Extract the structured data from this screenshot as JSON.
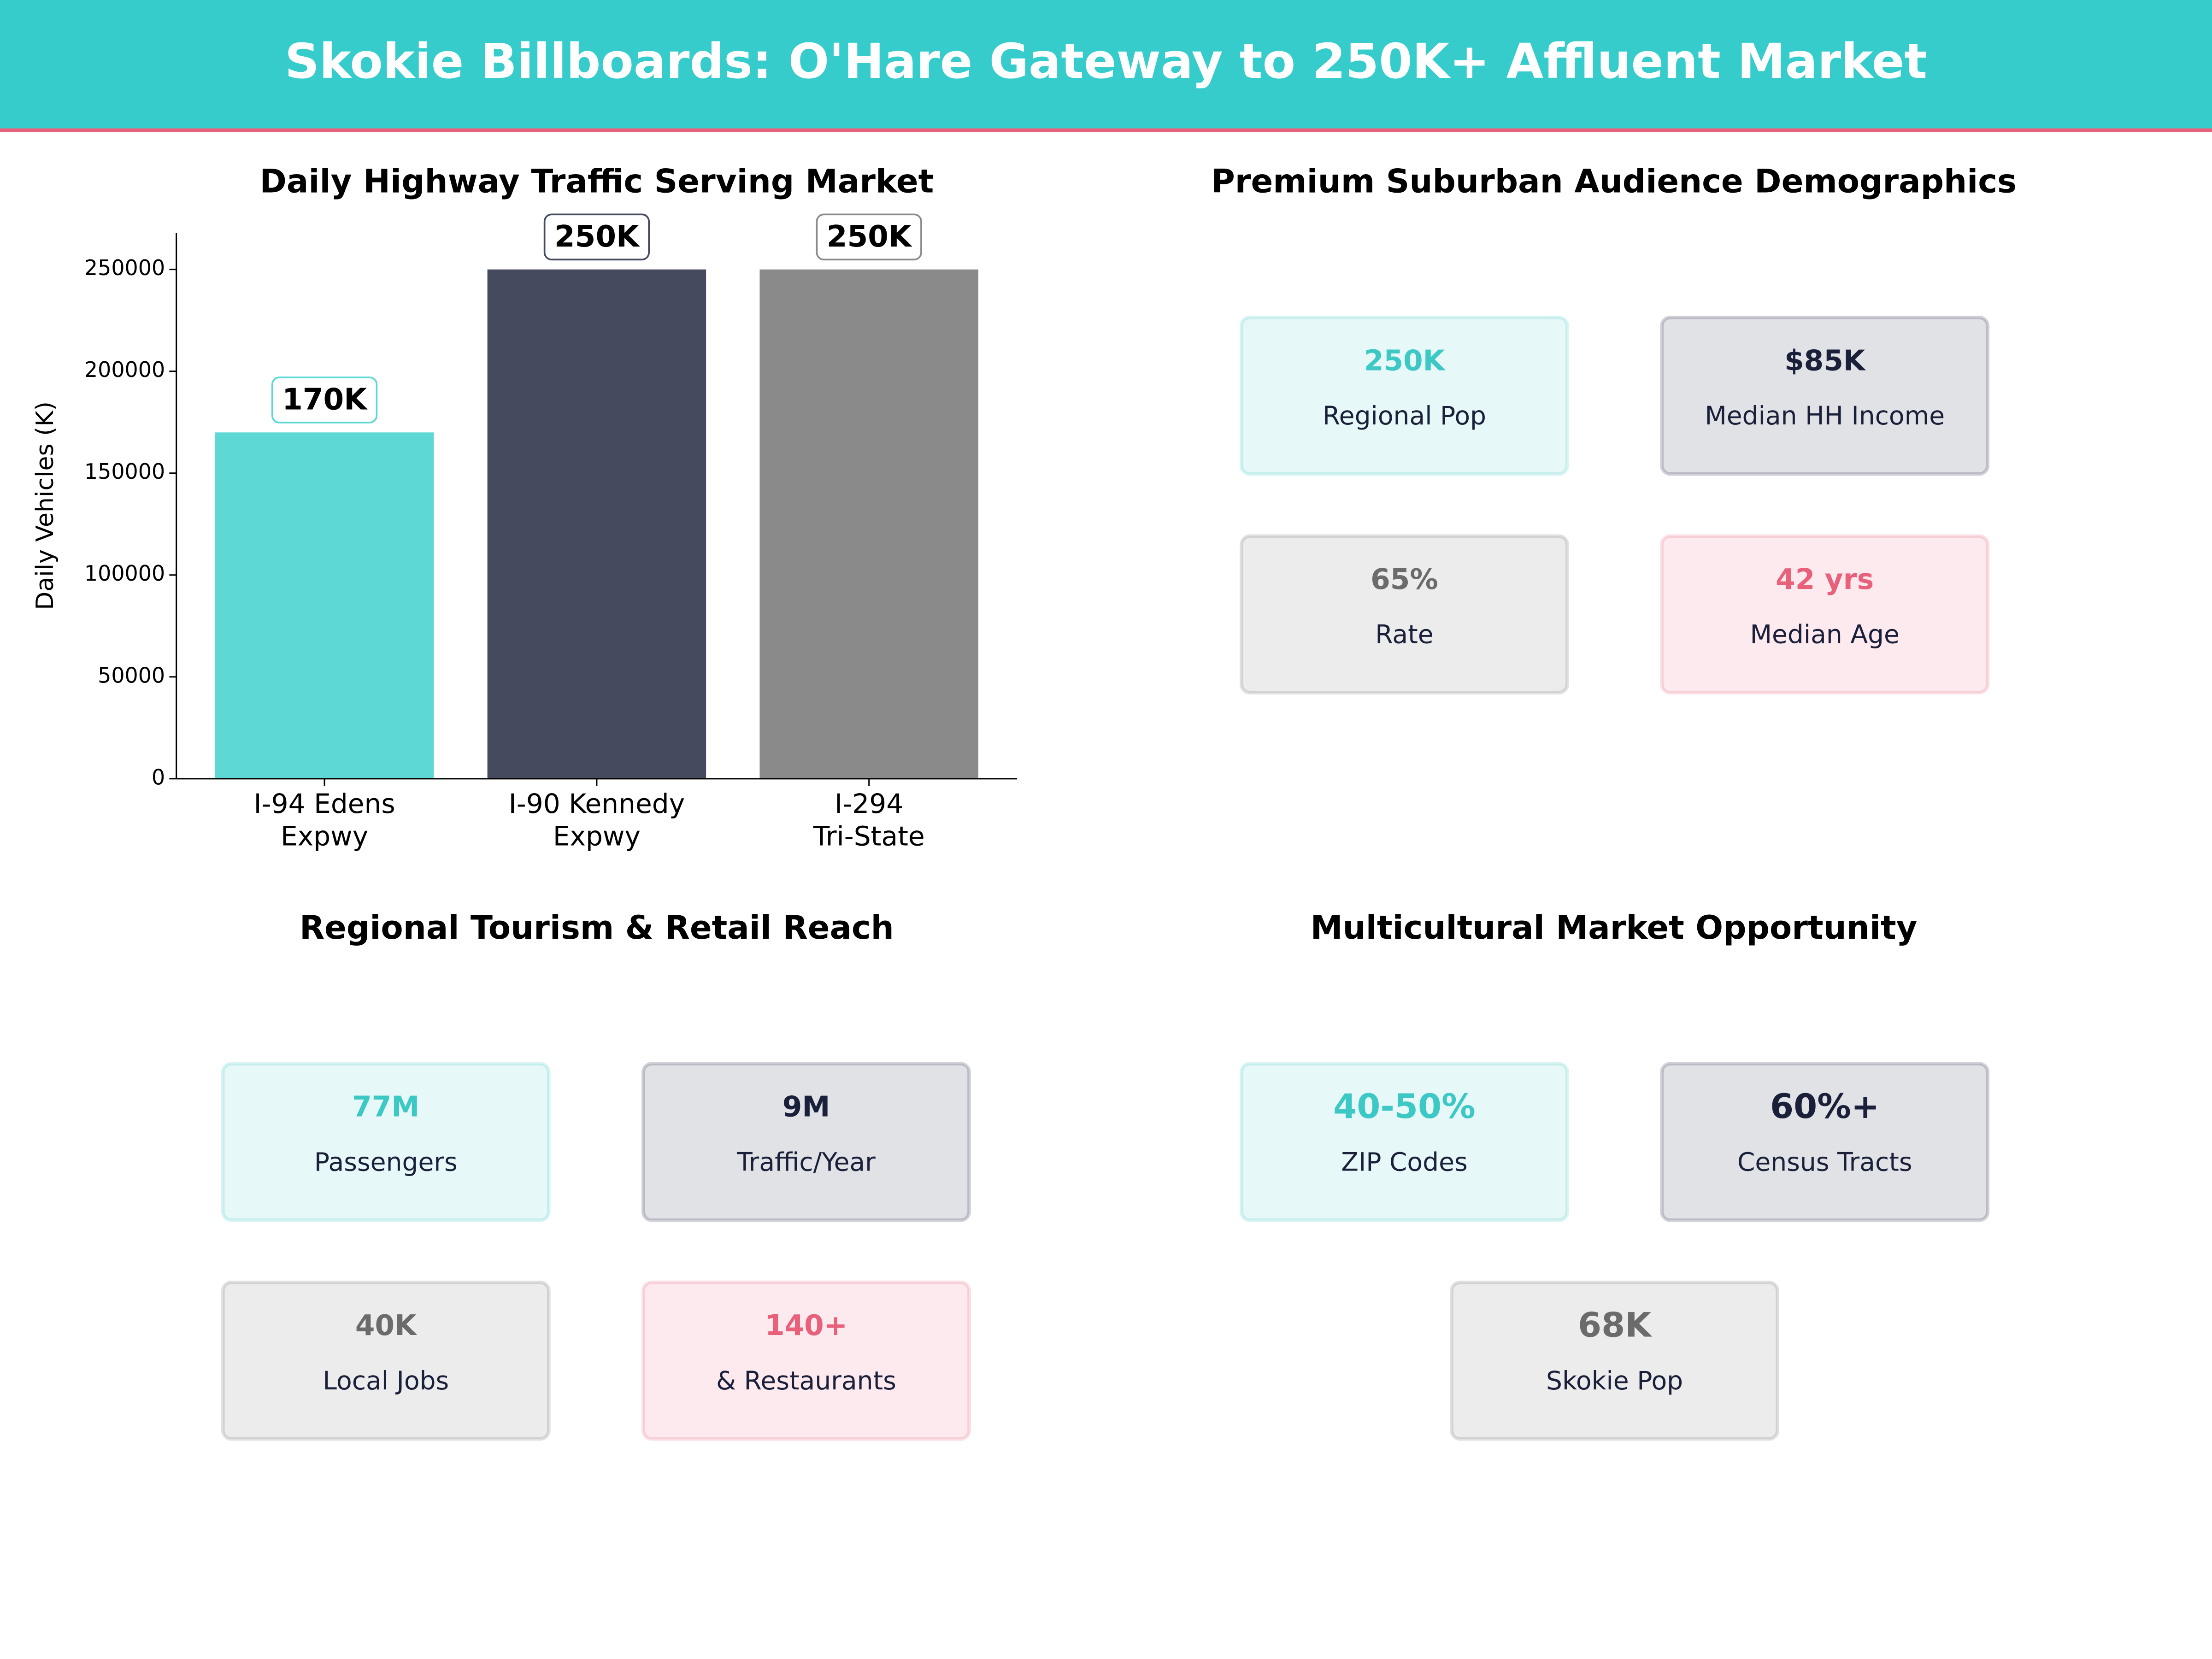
{
  "header": {
    "title": "Skokie Billboards: O'Hare Gateway to 250K+ Affluent Market"
  },
  "chart_data": {
    "type": "bar",
    "title": "Daily Highway Traffic Serving Market",
    "ylabel": "Daily Vehicles (K)",
    "categories": [
      "I-94 Edens\nExpwy",
      "I-90 Kennedy\nExpwy",
      "I-294\nTri-State"
    ],
    "values": [
      170000,
      250000,
      250000
    ],
    "value_labels": [
      "170K",
      "250K",
      "250K"
    ],
    "colors": [
      "#5dd8d4",
      "#464a5f",
      "#8a8a8a"
    ],
    "ylim": [
      0,
      268000
    ],
    "yticks": [
      0,
      50000,
      100000,
      150000,
      200000,
      250000
    ]
  },
  "panels": [
    {
      "title": "Premium Suburban Audience Demographics",
      "cards": [
        {
          "value": "250K",
          "label": "Regional Pop",
          "color": "#3cc8c4"
        },
        {
          "value": "$85K",
          "label": "Median HH Income",
          "color": "#1a1f3a"
        },
        {
          "value": "65%",
          "label": "Rate",
          "color": "#6b6b6b"
        },
        {
          "value": "42 yrs",
          "label": "Median Age",
          "color": "#e8607a"
        }
      ]
    },
    {
      "title": "Regional Tourism & Retail Reach",
      "cards": [
        {
          "value": "77M",
          "label": "Passengers",
          "color": "#3cc8c4"
        },
        {
          "value": "9M",
          "label": "Traffic/Year",
          "color": "#1a1f3a"
        },
        {
          "value": "40K",
          "label": "Local Jobs",
          "color": "#6b6b6b"
        },
        {
          "value": "140+",
          "label": "& Restaurants",
          "color": "#e8607a"
        }
      ]
    },
    {
      "title": "Multicultural Market Opportunity",
      "cards": [
        {
          "value": "40-50%",
          "label": "ZIP Codes",
          "color": "#3cc8c4"
        },
        {
          "value": "60%+",
          "label": "Census Tracts",
          "color": "#1a1f3a"
        },
        {
          "value": "68K",
          "label": "Skokie Pop",
          "color": "#6b6b6b"
        }
      ]
    }
  ]
}
